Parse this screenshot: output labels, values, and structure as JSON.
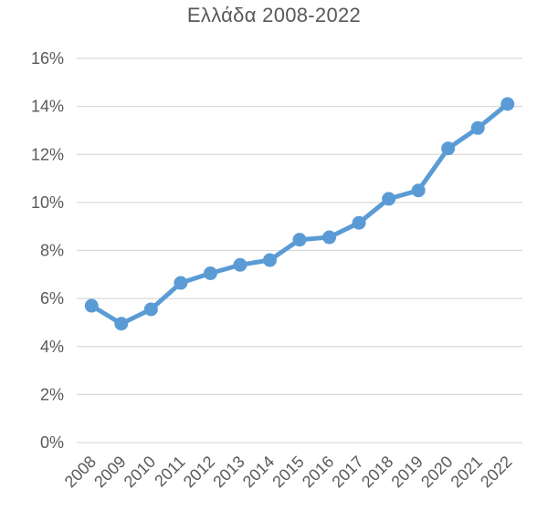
{
  "chart_data": {
    "type": "line",
    "title": "Ελλάδα 2008-2022",
    "xlabel": "",
    "ylabel": "",
    "categories": [
      "2008",
      "2009",
      "2010",
      "2011",
      "2012",
      "2013",
      "2014",
      "2015",
      "2016",
      "2017",
      "2018",
      "2019",
      "2020",
      "2021",
      "2022"
    ],
    "series": [
      {
        "values": [
          5.7,
          4.95,
          5.55,
          6.65,
          7.05,
          7.4,
          7.6,
          8.45,
          8.55,
          9.15,
          10.15,
          10.5,
          12.25,
          13.1,
          14.1
        ],
        "color": "#5B9BD5"
      }
    ],
    "ylim": [
      0,
      16
    ],
    "ytick_values": [
      0,
      2,
      4,
      6,
      8,
      10,
      12,
      14,
      16
    ],
    "ytick_labels": [
      "0%",
      "2%",
      "4%",
      "6%",
      "8%",
      "10%",
      "12%",
      "14%",
      "16%"
    ],
    "grid": true,
    "legend": "none",
    "colors": {
      "grid": "#D9D9D9",
      "text": "#595959",
      "line": "#5B9BD5"
    }
  }
}
